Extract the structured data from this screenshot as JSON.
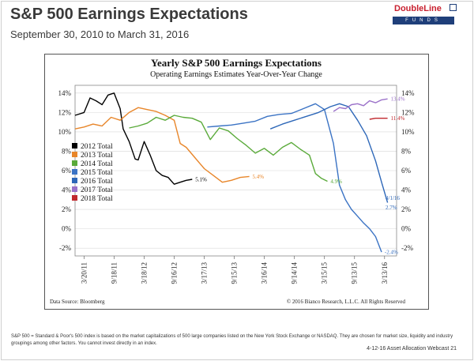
{
  "header": {
    "title": "S&P 500 Earnings Expectations",
    "subtitle": "September 30, 2010 to March 31, 2016"
  },
  "logo": {
    "top": "DoubleLine",
    "bottom": "FUNDS",
    "accent": "#c8202f",
    "navy": "#1f3f7a"
  },
  "footnote": "S&P 500 = Standard & Poor's 500 index is based on the market capitalizations of 500 large companies listed on the New York Stock Exchange or NASDAQ. They are chosen for market size, liquidity and industry groupings among other factors. You cannot invest directly in an index.",
  "webcast": "4-12-16 Asset Allocation Webcast 21",
  "chart_data": {
    "type": "line",
    "title": "Yearly S&P 500 Earnings Expectations",
    "subtitle": "Operating Earnings Estimates Year-Over-Year Change",
    "source": "Data Source: Bloomberg",
    "copyright": "© 2016 Bianco Research, L.L.C. All Rights Reserved",
    "x_ticks": [
      "3/20/11",
      "9/18/11",
      "3/18/12",
      "9/16/12",
      "3/17/13",
      "9/15/13",
      "3/16/14",
      "9/14/14",
      "3/15/15",
      "9/13/15",
      "3/13/16"
    ],
    "y_ticks": [
      "14%",
      "12%",
      "10%",
      "8%",
      "6%",
      "4%",
      "2%",
      "0%",
      "-2%"
    ],
    "ylim": [
      -2.8,
      14.8
    ],
    "xlim": [
      0,
      10.7
    ],
    "grid": true,
    "legend_position": "left",
    "series": [
      {
        "name": "2012 Total",
        "color": "#000000",
        "x": [
          0.0,
          0.3,
          0.5,
          0.7,
          0.9,
          1.1,
          1.3,
          1.5,
          1.6,
          1.8,
          2.0,
          2.1,
          2.3,
          2.5,
          2.7,
          2.9,
          3.1,
          3.3,
          3.5,
          3.7,
          3.9
        ],
        "y": [
          11.7,
          12.0,
          13.5,
          13.2,
          12.8,
          13.8,
          14.0,
          12.4,
          10.3,
          9.0,
          7.2,
          7.1,
          9.0,
          7.6,
          6.0,
          5.5,
          5.3,
          4.6,
          4.8,
          5.0,
          5.1
        ]
      },
      {
        "name": "2013 Total",
        "color": "#e8862a",
        "x": [
          0.0,
          0.3,
          0.6,
          0.9,
          1.2,
          1.5,
          1.8,
          2.1,
          2.4,
          2.7,
          3.0,
          3.3,
          3.5,
          3.7,
          4.0,
          4.3,
          4.6,
          4.9,
          5.2,
          5.5,
          5.8
        ],
        "y": [
          10.3,
          10.5,
          10.8,
          10.6,
          11.5,
          11.2,
          12.0,
          12.5,
          12.3,
          12.1,
          11.7,
          11.2,
          8.8,
          8.4,
          7.3,
          6.2,
          5.5,
          4.8,
          5.0,
          5.3,
          5.4
        ]
      },
      {
        "name": "2014 Total",
        "color": "#5aaa3a",
        "x": [
          1.8,
          2.1,
          2.4,
          2.7,
          3.0,
          3.3,
          3.6,
          3.9,
          4.2,
          4.5,
          4.8,
          5.1,
          5.4,
          5.7,
          6.0,
          6.3,
          6.6,
          6.9,
          7.2,
          7.5,
          7.8,
          8.0,
          8.2,
          8.4
        ],
        "y": [
          10.4,
          10.6,
          10.9,
          11.5,
          11.2,
          11.7,
          11.5,
          11.4,
          11.0,
          9.2,
          10.4,
          10.1,
          9.3,
          8.6,
          7.8,
          8.3,
          7.6,
          8.4,
          8.9,
          8.2,
          7.6,
          5.7,
          5.2,
          4.9
        ]
      },
      {
        "name": "2015 Total",
        "color": "#3b73c4",
        "x": [
          4.4,
          4.8,
          5.2,
          5.6,
          6.0,
          6.4,
          6.8,
          7.2,
          7.6,
          8.0,
          8.3,
          8.6,
          8.8,
          9.0,
          9.2,
          9.4,
          9.6,
          9.8,
          10.0,
          10.2
        ],
        "y": [
          10.5,
          10.6,
          10.7,
          10.9,
          11.1,
          11.6,
          11.8,
          11.9,
          12.4,
          12.9,
          12.3,
          8.8,
          4.5,
          3.0,
          2.0,
          1.3,
          0.6,
          0.0,
          -0.8,
          -2.4
        ]
      },
      {
        "name": "2016 Total",
        "color": "#2d67b8",
        "x": [
          6.5,
          6.9,
          7.3,
          7.7,
          8.1,
          8.5,
          8.8,
          9.1,
          9.4,
          9.7,
          10.0,
          10.2,
          10.4
        ],
        "y": [
          10.3,
          10.8,
          11.2,
          11.6,
          12.0,
          12.6,
          12.9,
          12.6,
          11.2,
          9.6,
          7.0,
          4.8,
          2.7
        ]
      },
      {
        "name": "2017 Total",
        "color": "#9b72c9",
        "x": [
          8.6,
          8.8,
          9.0,
          9.2,
          9.4,
          9.6,
          9.8,
          10.0,
          10.2,
          10.4
        ],
        "y": [
          12.1,
          12.5,
          12.4,
          12.8,
          12.9,
          12.7,
          13.2,
          13.0,
          13.3,
          13.4
        ]
      },
      {
        "name": "2018 Total",
        "color": "#c0282d",
        "x": [
          9.8,
          10.0,
          10.2,
          10.4
        ],
        "y": [
          11.3,
          11.4,
          11.4,
          11.4
        ]
      }
    ],
    "annotations": [
      {
        "text": "5.1%",
        "x": 3.95,
        "y": 5.1,
        "color": "#000000"
      },
      {
        "text": "5.4%",
        "x": 5.85,
        "y": 5.4,
        "color": "#e8862a"
      },
      {
        "text": "4.9%",
        "x": 8.45,
        "y": 4.9,
        "color": "#5aaa3a"
      },
      {
        "text": "4/1/16",
        "x": 10.28,
        "y": 3.2,
        "color": "#2d67b8"
      },
      {
        "text": "2.7%",
        "x": 10.28,
        "y": 2.2,
        "color": "#2d67b8"
      },
      {
        "text": "-2.4%",
        "x": 10.25,
        "y": -2.4,
        "color": "#3b73c4"
      },
      {
        "text": "13.4%",
        "x": 10.45,
        "y": 13.4,
        "color": "#9b72c9"
      },
      {
        "text": "11.4%",
        "x": 10.45,
        "y": 11.4,
        "color": "#c0282d"
      }
    ]
  }
}
